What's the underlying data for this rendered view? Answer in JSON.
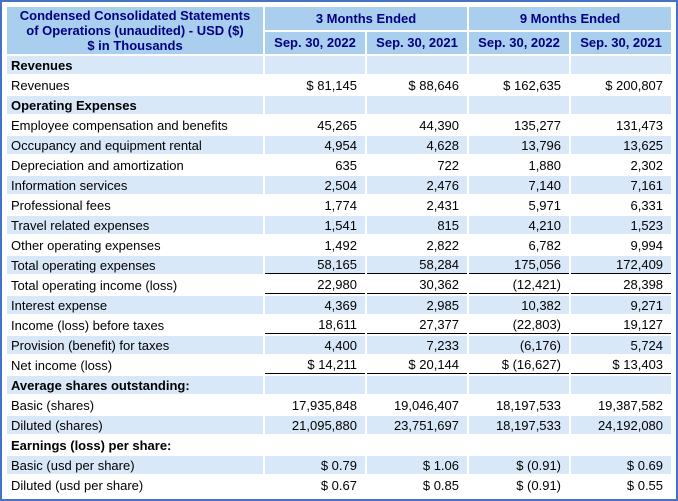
{
  "colors": {
    "frame_border": "#4472c4",
    "header_bg": "#aaceee",
    "header_text": "#000080",
    "alt_row_bg": "#d9e8f8",
    "row_bg": "#ffffff",
    "body_text": "#000000"
  },
  "table": {
    "title": "Condensed Consolidated Statements of Operations (unaudited) - USD ($) $ in Thousands",
    "title_lines": [
      "Condensed Consolidated Statements",
      "of Operations (unaudited) - USD ($)",
      "$ in Thousands"
    ],
    "column_groups": [
      {
        "label": "3 Months Ended"
      },
      {
        "label": "9 Months Ended"
      }
    ],
    "column_headers": [
      "Sep. 30, 2022",
      "Sep. 30, 2021",
      "Sep. 30, 2022",
      "Sep. 30, 2021"
    ],
    "rows": [
      {
        "label": "Revenues",
        "section": true,
        "values": [
          "",
          "",
          "",
          ""
        ]
      },
      {
        "label": "Revenues",
        "values": [
          "$ 81,145",
          "$ 88,646",
          "$ 162,635",
          "$ 200,807"
        ]
      },
      {
        "label": "Operating Expenses",
        "section": true,
        "values": [
          "",
          "",
          "",
          ""
        ]
      },
      {
        "label": "Employee compensation and benefits",
        "values": [
          "45,265",
          "44,390",
          "135,277",
          "131,473"
        ]
      },
      {
        "label": "Occupancy and equipment rental",
        "values": [
          "4,954",
          "4,628",
          "13,796",
          "13,625"
        ]
      },
      {
        "label": "Depreciation and amortization",
        "values": [
          "635",
          "722",
          "1,880",
          "2,302"
        ]
      },
      {
        "label": "Information services",
        "values": [
          "2,504",
          "2,476",
          "7,140",
          "7,161"
        ]
      },
      {
        "label": "Professional fees",
        "values": [
          "1,774",
          "2,431",
          "5,971",
          "6,331"
        ]
      },
      {
        "label": "Travel related expenses",
        "values": [
          "1,541",
          "815",
          "4,210",
          "1,523"
        ]
      },
      {
        "label": "Other operating expenses",
        "values": [
          "1,492",
          "2,822",
          "6,782",
          "9,994"
        ]
      },
      {
        "label": "Total operating expenses",
        "total": true,
        "values": [
          "58,165",
          "58,284",
          "175,056",
          "172,409"
        ]
      },
      {
        "label": "Total operating income (loss)",
        "total": true,
        "values": [
          "22,980",
          "30,362",
          "(12,421)",
          "28,398"
        ]
      },
      {
        "label": "Interest expense",
        "values": [
          "4,369",
          "2,985",
          "10,382",
          "9,271"
        ]
      },
      {
        "label": "Income (loss) before taxes",
        "total": true,
        "values": [
          "18,611",
          "27,377",
          "(22,803)",
          "19,127"
        ]
      },
      {
        "label": "Provision (benefit) for taxes",
        "values": [
          "4,400",
          "7,233",
          "(6,176)",
          "5,724"
        ]
      },
      {
        "label": "Net income (loss)",
        "total": true,
        "values": [
          "$ 14,211",
          "$ 20,144",
          "$ (16,627)",
          "$ 13,403"
        ]
      },
      {
        "label": "Average shares outstanding:",
        "section": true,
        "values": [
          "",
          "",
          "",
          ""
        ]
      },
      {
        "label": "Basic (shares)",
        "values": [
          "17,935,848",
          "19,046,407",
          "18,197,533",
          "19,387,582"
        ]
      },
      {
        "label": "Diluted (shares)",
        "values": [
          "21,095,880",
          "23,751,697",
          "18,197,533",
          "24,192,080"
        ]
      },
      {
        "label": "Earnings (loss) per share:",
        "section": true,
        "values": [
          "",
          "",
          "",
          ""
        ]
      },
      {
        "label": "Basic (usd per share)",
        "values": [
          "$ 0.79",
          "$ 1.06",
          "$ (0.91)",
          "$ 0.69"
        ]
      },
      {
        "label": "Diluted (usd per share)",
        "values": [
          "$ 0.67",
          "$ 0.85",
          "$ (0.91)",
          "$ 0.55"
        ]
      }
    ]
  }
}
